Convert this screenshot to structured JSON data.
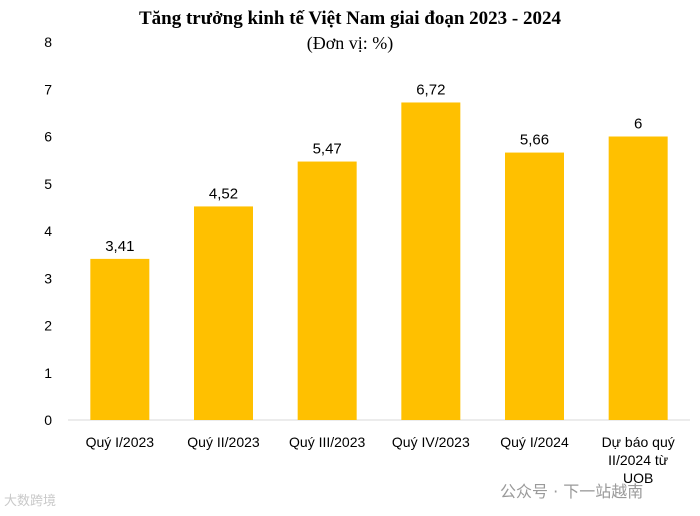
{
  "chart_data": {
    "type": "bar",
    "title": "Tăng trưởng kinh tế Việt Nam giai đoạn 2023 - 2024",
    "subtitle": "(Đơn vị: %)",
    "categories": [
      [
        "Quý I/2023"
      ],
      [
        "Quý II/2023"
      ],
      [
        "Quý III/2023"
      ],
      [
        "Quý IV/2023"
      ],
      [
        "Quý I/2024"
      ],
      [
        "Dự báo quý",
        "II/2024 từ",
        "UOB"
      ]
    ],
    "values": [
      3.41,
      4.52,
      5.47,
      6.72,
      5.66,
      6
    ],
    "value_labels": [
      "3,41",
      "4,52",
      "5,47",
      "6,72",
      "5,66",
      "6"
    ],
    "ylim": [
      0,
      8
    ],
    "yticks": [
      0,
      1,
      2,
      3,
      4,
      5,
      6,
      7,
      8
    ],
    "bar_color": "#FFC000",
    "grid": false
  },
  "watermarks": {
    "left": "大数跨境",
    "right": "公众号 · 下一站越南"
  }
}
